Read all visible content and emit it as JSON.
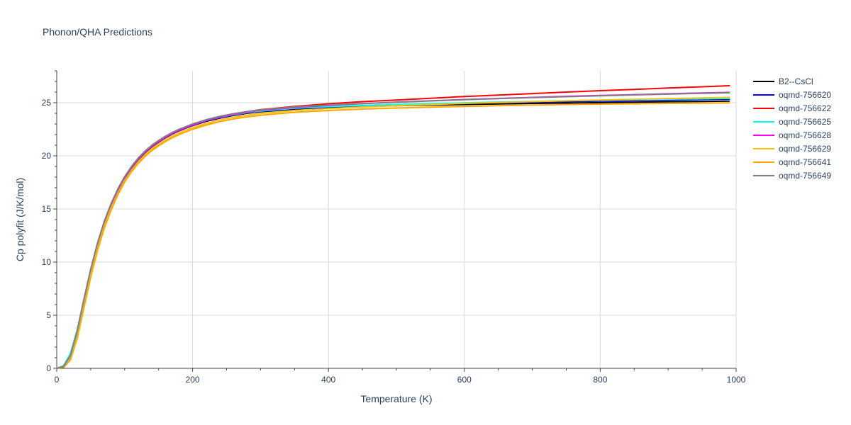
{
  "chart_data": {
    "type": "line",
    "title": "Phonon/QHA Predictions",
    "xlabel": "Temperature (K)",
    "ylabel": "Cp polyfit (J/K/mol)",
    "xlim": [
      0,
      1000
    ],
    "ylim": [
      0,
      28
    ],
    "xticks": [
      0,
      200,
      400,
      600,
      800,
      1000
    ],
    "yticks": [
      0,
      5,
      10,
      15,
      20,
      25
    ],
    "grid": true,
    "legend_position": "top-right (outside plot)",
    "x": [
      0,
      10,
      20,
      30,
      40,
      50,
      60,
      70,
      80,
      90,
      100,
      110,
      120,
      130,
      140,
      150,
      160,
      170,
      180,
      190,
      200,
      220,
      240,
      260,
      280,
      300,
      350,
      400,
      450,
      500,
      550,
      600,
      650,
      700,
      750,
      800,
      850,
      900,
      950,
      990
    ],
    "series": [
      {
        "name": "B2--CsCl",
        "color": "#000000",
        "values": [
          0,
          0.1,
          0.8,
          3.0,
          6.0,
          8.9,
          11.5,
          13.6,
          15.3,
          16.7,
          17.9,
          18.85,
          19.65,
          20.3,
          20.85,
          21.3,
          21.7,
          22.05,
          22.35,
          22.6,
          22.85,
          23.25,
          23.55,
          23.8,
          24.0,
          24.15,
          24.4,
          24.55,
          24.65,
          24.72,
          24.78,
          24.83,
          24.88,
          24.93,
          24.97,
          25.01,
          25.05,
          25.09,
          25.12,
          25.15
        ]
      },
      {
        "name": "oqmd-756620",
        "color": "#0000ff",
        "values": [
          0,
          0.15,
          1.0,
          3.2,
          6.2,
          9.1,
          11.6,
          13.7,
          15.35,
          16.75,
          17.95,
          18.9,
          19.7,
          20.35,
          20.9,
          21.35,
          21.75,
          22.1,
          22.4,
          22.65,
          22.9,
          23.3,
          23.6,
          23.85,
          24.05,
          24.2,
          24.45,
          24.6,
          24.72,
          24.8,
          24.87,
          24.93,
          24.99,
          25.05,
          25.1,
          25.15,
          25.2,
          25.25,
          25.3,
          25.33
        ]
      },
      {
        "name": "oqmd-756622",
        "color": "#ff0000",
        "values": [
          0,
          0.15,
          1.0,
          3.2,
          6.2,
          9.1,
          11.6,
          13.7,
          15.35,
          16.75,
          17.95,
          18.9,
          19.7,
          20.35,
          20.9,
          21.35,
          21.75,
          22.1,
          22.4,
          22.65,
          22.9,
          23.35,
          23.7,
          23.95,
          24.15,
          24.35,
          24.65,
          24.9,
          25.1,
          25.25,
          25.42,
          25.58,
          25.72,
          25.86,
          26.0,
          26.13,
          26.25,
          26.38,
          26.5,
          26.6
        ]
      },
      {
        "name": "oqmd-756625",
        "color": "#00ffff",
        "values": [
          0,
          0.25,
          1.4,
          3.6,
          6.5,
          9.3,
          11.75,
          13.8,
          15.45,
          16.85,
          18.0,
          18.95,
          19.72,
          20.37,
          20.92,
          21.37,
          21.77,
          22.12,
          22.42,
          22.67,
          22.92,
          23.32,
          23.62,
          23.87,
          24.07,
          24.22,
          24.48,
          24.63,
          24.75,
          24.84,
          24.92,
          24.99,
          25.06,
          25.12,
          25.18,
          25.23,
          25.28,
          25.33,
          25.37,
          25.4
        ]
      },
      {
        "name": "oqmd-756628",
        "color": "#ff00ff",
        "values": [
          0,
          0.15,
          1.0,
          3.2,
          6.2,
          9.1,
          11.6,
          13.7,
          15.35,
          16.75,
          17.95,
          18.9,
          19.7,
          20.35,
          20.9,
          21.35,
          21.75,
          22.1,
          22.4,
          22.65,
          22.9,
          23.32,
          23.65,
          23.9,
          24.1,
          24.28,
          24.55,
          24.75,
          24.92,
          25.05,
          25.18,
          25.3,
          25.4,
          25.5,
          25.6,
          25.68,
          25.76,
          25.84,
          25.92,
          25.97
        ]
      },
      {
        "name": "oqmd-756629",
        "color": "#ffc000",
        "values": [
          0,
          0.15,
          0.9,
          3.0,
          5.9,
          8.8,
          11.3,
          13.4,
          15.1,
          16.5,
          17.7,
          18.65,
          19.45,
          20.1,
          20.65,
          21.1,
          21.5,
          21.85,
          22.15,
          22.4,
          22.65,
          23.05,
          23.38,
          23.62,
          23.82,
          23.98,
          24.27,
          24.45,
          24.6,
          24.72,
          24.83,
          24.93,
          25.02,
          25.1,
          25.18,
          25.25,
          25.32,
          25.39,
          25.45,
          25.5
        ]
      },
      {
        "name": "oqmd-756641",
        "color": "#ffa500",
        "values": [
          0,
          0.12,
          0.8,
          2.8,
          5.7,
          8.6,
          11.1,
          13.2,
          14.9,
          16.35,
          17.55,
          18.5,
          19.3,
          19.95,
          20.5,
          20.95,
          21.35,
          21.7,
          22.0,
          22.25,
          22.5,
          22.9,
          23.22,
          23.47,
          23.67,
          23.82,
          24.1,
          24.27,
          24.4,
          24.5,
          24.58,
          24.65,
          24.72,
          24.78,
          24.83,
          24.87,
          24.9,
          24.93,
          24.96,
          24.98
        ]
      },
      {
        "name": "oqmd-756649",
        "color": "#808080",
        "values": [
          0,
          0.2,
          1.2,
          3.5,
          6.5,
          9.35,
          11.8,
          13.85,
          15.5,
          16.9,
          18.05,
          19.0,
          19.8,
          20.45,
          21.0,
          21.45,
          21.85,
          22.2,
          22.5,
          22.75,
          23.0,
          23.4,
          23.72,
          23.97,
          24.17,
          24.33,
          24.6,
          24.78,
          24.92,
          25.05,
          25.17,
          25.28,
          25.38,
          25.48,
          25.57,
          25.65,
          25.73,
          25.81,
          25.88,
          25.93
        ]
      }
    ]
  }
}
